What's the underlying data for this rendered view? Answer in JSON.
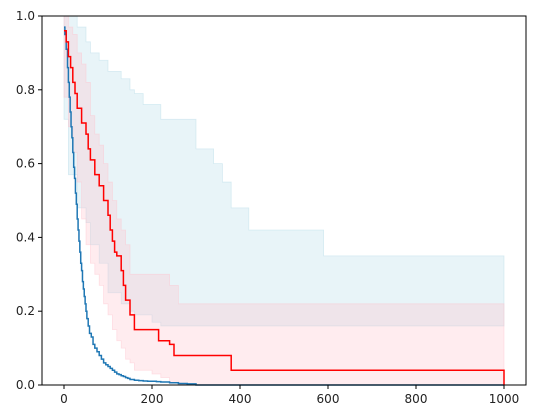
{
  "chart_data": {
    "type": "line",
    "title": "",
    "xlabel": "",
    "ylabel": "",
    "xlim": [
      -50,
      1050
    ],
    "ylim": [
      0,
      1
    ],
    "x_ticks": [
      0,
      200,
      400,
      600,
      800,
      1000
    ],
    "y_ticks": [
      0.0,
      0.2,
      0.4,
      0.6,
      0.8,
      1.0
    ],
    "x_tick_labels": [
      "0",
      "200",
      "400",
      "600",
      "800",
      "1000"
    ],
    "y_tick_labels": [
      "0.0",
      "0.2",
      "0.4",
      "0.6",
      "0.8",
      "1.0"
    ],
    "grid": false,
    "legend": "none",
    "bands": [
      {
        "color": "#add8e6",
        "opacity": 0.28,
        "x": [
          0,
          10,
          30,
          50,
          60,
          80,
          100,
          130,
          150,
          160,
          180,
          200,
          220,
          260,
          300,
          340,
          360,
          380,
          420,
          480,
          520,
          560,
          590,
          1000
        ],
        "upper": [
          1.0,
          1.0,
          0.97,
          0.93,
          0.9,
          0.88,
          0.85,
          0.83,
          0.8,
          0.79,
          0.76,
          0.76,
          0.72,
          0.72,
          0.64,
          0.6,
          0.55,
          0.48,
          0.42,
          0.42,
          0.42,
          0.42,
          0.35,
          0.35
        ],
        "lower": [
          0.82,
          0.72,
          0.57,
          0.48,
          0.44,
          0.38,
          0.33,
          0.25,
          0.22,
          0.2,
          0.19,
          0.19,
          0.17,
          0.16,
          0.16,
          0.16,
          0.16,
          0.16,
          0.16,
          0.16,
          0.16,
          0.16,
          0.16,
          0.16
        ]
      },
      {
        "color": "#ffc0cb",
        "opacity": 0.3,
        "x": [
          0,
          10,
          20,
          30,
          40,
          50,
          60,
          70,
          80,
          90,
          100,
          110,
          120,
          130,
          140,
          150,
          160,
          200,
          220,
          240,
          260,
          300,
          340,
          380,
          1000
        ],
        "upper": [
          1.0,
          0.97,
          0.95,
          0.9,
          0.87,
          0.82,
          0.73,
          0.68,
          0.65,
          0.6,
          0.55,
          0.5,
          0.45,
          0.42,
          0.38,
          0.3,
          0.3,
          0.3,
          0.3,
          0.27,
          0.22,
          0.22,
          0.22,
          0.22,
          0.16
        ],
        "lower": [
          0.9,
          0.78,
          0.7,
          0.63,
          0.55,
          0.45,
          0.38,
          0.33,
          0.3,
          0.27,
          0.22,
          0.19,
          0.15,
          0.12,
          0.1,
          0.07,
          0.06,
          0.04,
          0.03,
          0.02,
          0.01,
          0.0,
          0.0,
          0.0,
          0.0
        ]
      }
    ],
    "series": [
      {
        "color": "#1f77b4",
        "x": [
          0,
          2,
          5,
          8,
          10,
          12,
          14,
          16,
          18,
          20,
          22,
          24,
          26,
          28,
          30,
          32,
          34,
          36,
          38,
          40,
          42,
          44,
          46,
          48,
          50,
          52,
          55,
          58,
          62,
          66,
          70,
          75,
          80,
          85,
          90,
          95,
          100,
          105,
          110,
          115,
          120,
          125,
          130,
          135,
          140,
          145,
          150,
          160,
          170,
          180,
          190,
          200,
          210,
          220,
          240,
          260,
          280,
          300,
          1000
        ],
        "y": [
          0.97,
          0.95,
          0.91,
          0.86,
          0.82,
          0.78,
          0.74,
          0.7,
          0.67,
          0.63,
          0.59,
          0.56,
          0.52,
          0.49,
          0.45,
          0.42,
          0.39,
          0.36,
          0.33,
          0.31,
          0.28,
          0.26,
          0.24,
          0.22,
          0.2,
          0.18,
          0.16,
          0.14,
          0.13,
          0.11,
          0.1,
          0.09,
          0.08,
          0.07,
          0.06,
          0.055,
          0.05,
          0.045,
          0.04,
          0.035,
          0.03,
          0.028,
          0.025,
          0.023,
          0.02,
          0.018,
          0.015,
          0.013,
          0.012,
          0.011,
          0.01,
          0.01,
          0.009,
          0.008,
          0.006,
          0.004,
          0.003,
          0.0,
          0.0
        ]
      },
      {
        "color": "#ff0000",
        "x": [
          0,
          5,
          10,
          15,
          20,
          25,
          30,
          40,
          50,
          55,
          60,
          70,
          80,
          90,
          100,
          105,
          110,
          115,
          120,
          130,
          135,
          140,
          150,
          160,
          200,
          215,
          240,
          250,
          280,
          320,
          380,
          1000
        ],
        "y": [
          0.96,
          0.93,
          0.89,
          0.86,
          0.82,
          0.79,
          0.75,
          0.71,
          0.68,
          0.64,
          0.61,
          0.57,
          0.54,
          0.5,
          0.46,
          0.42,
          0.39,
          0.36,
          0.35,
          0.31,
          0.27,
          0.23,
          0.19,
          0.15,
          0.15,
          0.12,
          0.11,
          0.08,
          0.08,
          0.08,
          0.04,
          0.0
        ]
      }
    ]
  }
}
